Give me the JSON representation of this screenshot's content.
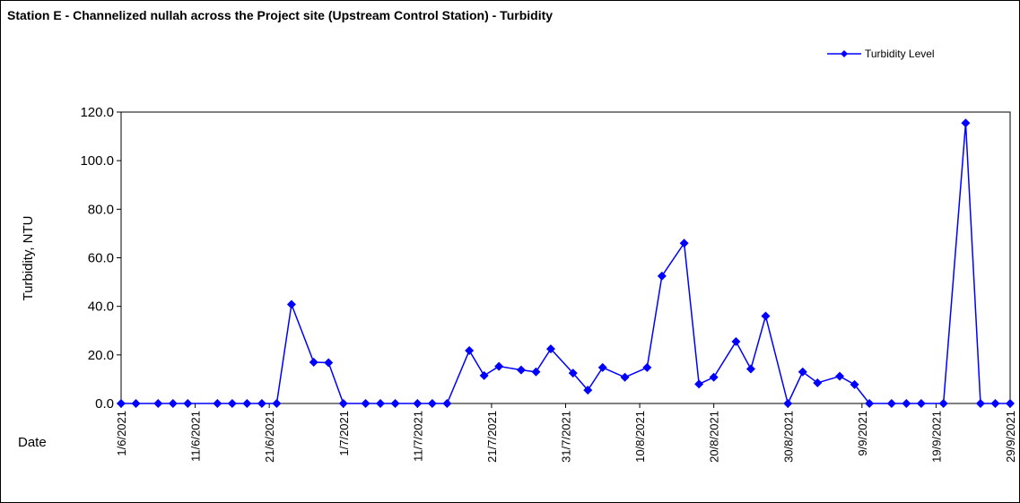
{
  "chart_data": {
    "type": "line",
    "title": "Station E - Channelized nullah across the Project site (Upstream Control Station) - Turbidity",
    "y_label": "Turbidity, NTU",
    "x_label": "Date",
    "x": [
      "1/6/2021",
      "3/6/2021",
      "6/6/2021",
      "8/6/2021",
      "10/6/2021",
      "14/6/2021",
      "16/6/2021",
      "18/6/2021",
      "20/6/2021",
      "22/6/2021",
      "24/6/2021",
      "27/6/2021",
      "29/6/2021",
      "1/7/2021",
      "4/7/2021",
      "6/7/2021",
      "8/7/2021",
      "11/7/2021",
      "13/7/2021",
      "15/7/2021",
      "18/7/2021",
      "20/7/2021",
      "22/7/2021",
      "25/7/2021",
      "27/7/2021",
      "29/7/2021",
      "1/8/2021",
      "3/8/2021",
      "5/8/2021",
      "8/8/2021",
      "11/8/2021",
      "13/8/2021",
      "16/8/2021",
      "18/8/2021",
      "20/8/2021",
      "23/8/2021",
      "25/8/2021",
      "27/8/2021",
      "30/8/2021",
      "1/9/2021",
      "3/9/2021",
      "6/9/2021",
      "8/9/2021",
      "10/9/2021",
      "13/9/2021",
      "15/9/2021",
      "17/9/2021",
      "20/9/2021",
      "23/9/2021",
      "25/9/2021",
      "27/9/2021",
      "29/9/2021"
    ],
    "series": [
      {
        "name": "Turbidity Level",
        "color": "#0000ff",
        "values": [
          0,
          0,
          0,
          0,
          0,
          0,
          0,
          0,
          0,
          0,
          40.8,
          17,
          16.8,
          0,
          0,
          0,
          0,
          0,
          0,
          0,
          21.8,
          11.5,
          15.3,
          13.8,
          13,
          22.5,
          12.5,
          5.5,
          14.8,
          10.8,
          14.8,
          52.5,
          66,
          8,
          10.8,
          25.5,
          14.2,
          36,
          0,
          13,
          8.5,
          11.2,
          7.8,
          0,
          0,
          0,
          0,
          0,
          115.5,
          0,
          0,
          0
        ]
      }
    ],
    "xlim": [
      "1/6/2021",
      "29/9/2021"
    ],
    "xticks": [
      "1/6/2021",
      "11/6/2021",
      "21/6/2021",
      "1/7/2021",
      "11/7/2021",
      "21/7/2021",
      "31/7/2021",
      "10/8/2021",
      "20/8/2021",
      "30/8/2021",
      "9/9/2021",
      "19/9/2021",
      "29/9/2021"
    ],
    "ylim": [
      0,
      120
    ],
    "yticks": [
      {
        "value": 0,
        "label": "0.0"
      },
      {
        "value": 20,
        "label": "20.0"
      },
      {
        "value": 40,
        "label": "40.0"
      },
      {
        "value": 60,
        "label": "60.0"
      },
      {
        "value": 80,
        "label": "80.0"
      },
      {
        "value": 100,
        "label": "100.0"
      },
      {
        "value": 120,
        "label": "120.0"
      }
    ],
    "legend": "top-right"
  }
}
